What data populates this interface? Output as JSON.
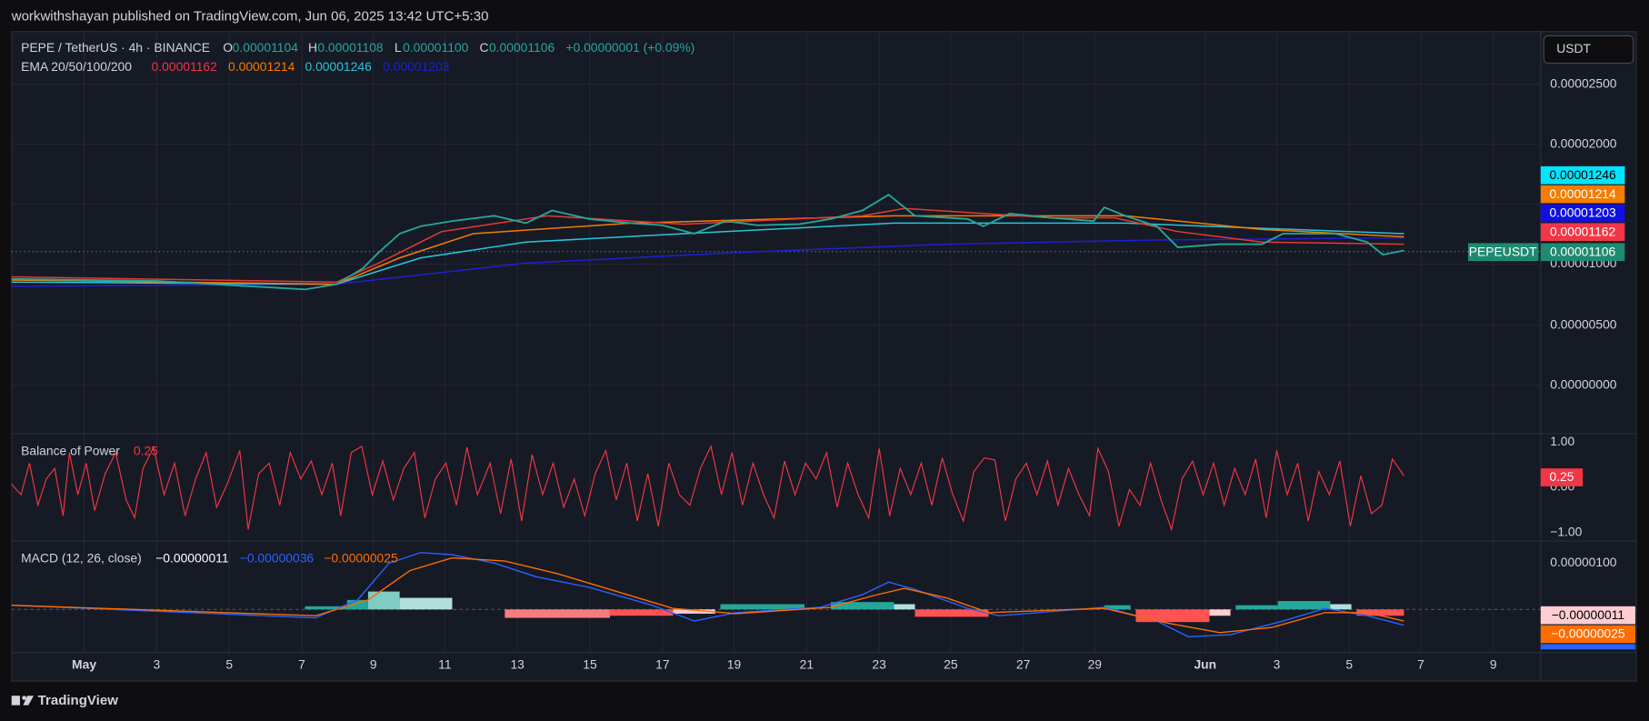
{
  "header": {
    "publisher": "workwithshayan published on TradingView.com, Jun 06, 2025 13:42 UTC+5:30"
  },
  "legend": {
    "symbol": "PEPE / TetherUS · 4h · BINANCE",
    "open_label": "O",
    "open": "0.00001104",
    "high_label": "H",
    "high": "0.00001108",
    "low_label": "L",
    "low": "0.00001100",
    "close_label": "C",
    "close": "0.00001106",
    "change": "+0.00000001 (+0.09%)"
  },
  "ema": {
    "label": "EMA 20/50/100/200",
    "values": [
      "0.00001162",
      "0.00001214",
      "0.00001246",
      "0.00001203"
    ]
  },
  "currency_button": "USDT",
  "price_axis": [
    "0.00002500",
    "0.00002000",
    "0.00001000",
    "0.00000500",
    "0.00000000"
  ],
  "price_tags": [
    "0.00001246",
    "0.00001214",
    "0.00001203",
    "0.00001162",
    "0.00001106"
  ],
  "symbol_tag": "PEPEUSDT",
  "bop": {
    "label": "Balance of Power",
    "value": "0.25",
    "axis": [
      "1.00",
      "0.00",
      "−1.00"
    ],
    "tag": "0.25"
  },
  "macd": {
    "label": "MACD (12, 26, close)",
    "values": [
      "−0.00000011",
      "−0.00000036",
      "−0.00000025"
    ],
    "axis": [
      "0.00000100"
    ],
    "tags": [
      "−0.00000011",
      "−0.00000025"
    ]
  },
  "time_axis": [
    "May",
    "3",
    "5",
    "7",
    "9",
    "11",
    "13",
    "15",
    "17",
    "19",
    "21",
    "23",
    "25",
    "27",
    "29",
    "Jun",
    "3",
    "5",
    "7",
    "9"
  ],
  "footer": {
    "brand": "TradingView"
  }
}
